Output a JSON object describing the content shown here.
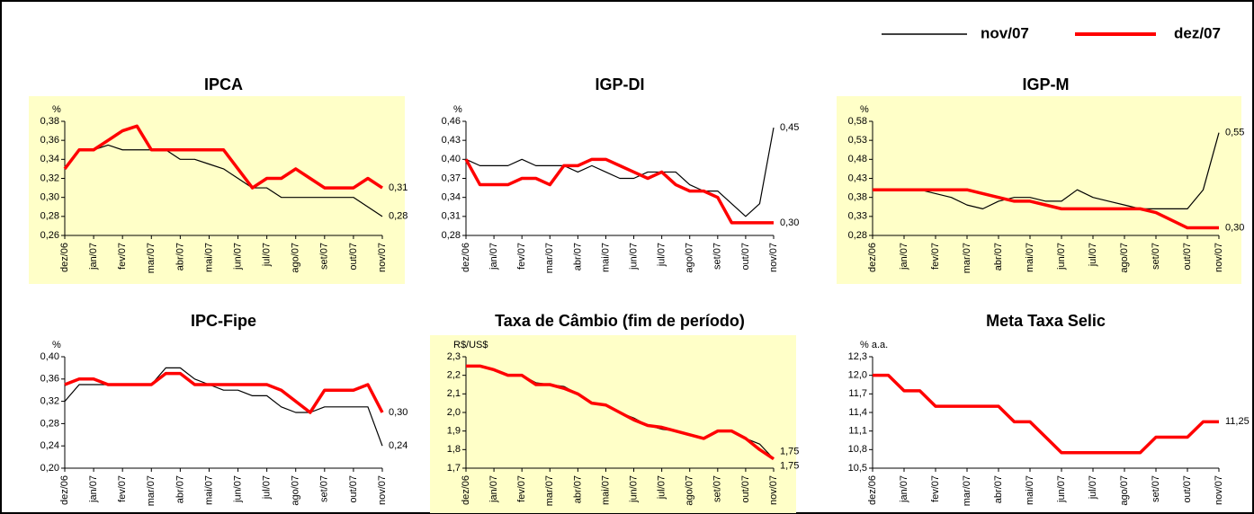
{
  "chart_data": [
    {
      "type": "line",
      "title": "IPCA",
      "y_unit": "%",
      "background": "#ffffc8",
      "categories": [
        "dez/06",
        null,
        "jan/07",
        null,
        "fev/07",
        null,
        "mar/07",
        null,
        "abr/07",
        null,
        "mai/07",
        null,
        "jun/07",
        null,
        "jul/07",
        null,
        "ago/07",
        null,
        "set/07",
        null,
        "out/07",
        null,
        "nov/07"
      ],
      "ylim": [
        0.26,
        0.38
      ],
      "yticks": [
        {
          "value": 0.26,
          "label": "0,26"
        },
        {
          "value": 0.28,
          "label": "0,28"
        },
        {
          "value": 0.3,
          "label": "0,30"
        },
        {
          "value": 0.32,
          "label": "0,32"
        },
        {
          "value": 0.34,
          "label": "0,34"
        },
        {
          "value": 0.36,
          "label": "0,36"
        },
        {
          "value": 0.38,
          "label": "0,38"
        }
      ],
      "series": [
        {
          "name": "nov/07",
          "color": "#000000",
          "values": [
            0.33,
            0.35,
            0.35,
            0.355,
            0.35,
            0.35,
            0.35,
            0.35,
            0.34,
            0.34,
            0.335,
            0.33,
            0.32,
            0.31,
            0.31,
            0.3,
            0.3,
            0.3,
            0.3,
            0.3,
            0.3,
            0.29,
            0.28
          ],
          "last_label": "0,28"
        },
        {
          "name": "dez/07",
          "color": "#ff0000",
          "values": [
            0.33,
            0.35,
            0.35,
            0.36,
            0.37,
            0.375,
            0.35,
            0.35,
            0.35,
            0.35,
            0.35,
            0.35,
            0.33,
            0.31,
            0.32,
            0.32,
            0.33,
            0.32,
            0.31,
            0.31,
            0.31,
            0.32,
            0.31
          ],
          "last_label": "0,31"
        }
      ]
    },
    {
      "type": "line",
      "title": "IGP-DI",
      "y_unit": "%",
      "categories": [
        "dez/06",
        null,
        "jan/07",
        null,
        "fev/07",
        null,
        "mar/07",
        null,
        "abr/07",
        null,
        "mai/07",
        null,
        "jun/07",
        null,
        "jul/07",
        null,
        "ago/07",
        null,
        "set/07",
        null,
        "out/07",
        null,
        "nov/07"
      ],
      "ylim": [
        0.28,
        0.46
      ],
      "yticks": [
        {
          "value": 0.28,
          "label": "0,28"
        },
        {
          "value": 0.31,
          "label": "0,31"
        },
        {
          "value": 0.34,
          "label": "0,34"
        },
        {
          "value": 0.37,
          "label": "0,37"
        },
        {
          "value": 0.4,
          "label": "0,40"
        },
        {
          "value": 0.43,
          "label": "0,43"
        },
        {
          "value": 0.46,
          "label": "0,46"
        }
      ],
      "series": [
        {
          "name": "nov/07",
          "color": "#000000",
          "values": [
            0.4,
            0.39,
            0.39,
            0.39,
            0.4,
            0.39,
            0.39,
            0.39,
            0.38,
            0.39,
            0.38,
            0.37,
            0.37,
            0.38,
            0.38,
            0.38,
            0.36,
            0.35,
            0.35,
            0.33,
            0.31,
            0.33,
            0.45
          ],
          "last_label": "0,45"
        },
        {
          "name": "dez/07",
          "color": "#ff0000",
          "values": [
            0.4,
            0.36,
            0.36,
            0.36,
            0.37,
            0.37,
            0.36,
            0.39,
            0.39,
            0.4,
            0.4,
            0.39,
            0.38,
            0.37,
            0.38,
            0.36,
            0.35,
            0.35,
            0.34,
            0.3,
            0.3,
            0.3,
            0.3
          ],
          "last_label": "0,30"
        }
      ]
    },
    {
      "type": "line",
      "title": "IGP-M",
      "y_unit": "%",
      "background": "#ffffc8",
      "categories": [
        "dez/06",
        null,
        "jan/07",
        null,
        "fev/07",
        null,
        "mar/07",
        null,
        "abr/07",
        null,
        "mai/07",
        null,
        "jun/07",
        null,
        "jul/07",
        null,
        "ago/07",
        null,
        "set/07",
        null,
        "out/07",
        null,
        "nov/07"
      ],
      "ylim": [
        0.28,
        0.58
      ],
      "yticks": [
        {
          "value": 0.28,
          "label": "0,28"
        },
        {
          "value": 0.33,
          "label": "0,33"
        },
        {
          "value": 0.38,
          "label": "0,38"
        },
        {
          "value": 0.43,
          "label": "0,43"
        },
        {
          "value": 0.48,
          "label": "0,48"
        },
        {
          "value": 0.53,
          "label": "0,53"
        },
        {
          "value": 0.58,
          "label": "0,58"
        }
      ],
      "series": [
        {
          "name": "nov/07",
          "color": "#000000",
          "values": [
            0.4,
            0.4,
            0.4,
            0.4,
            0.39,
            0.38,
            0.36,
            0.35,
            0.37,
            0.38,
            0.38,
            0.37,
            0.37,
            0.4,
            0.38,
            0.37,
            0.36,
            0.35,
            0.35,
            0.35,
            0.35,
            0.4,
            0.55
          ],
          "last_label": "0,55"
        },
        {
          "name": "dez/07",
          "color": "#ff0000",
          "values": [
            0.4,
            0.4,
            0.4,
            0.4,
            0.4,
            0.4,
            0.4,
            0.39,
            0.38,
            0.37,
            0.37,
            0.36,
            0.35,
            0.35,
            0.35,
            0.35,
            0.35,
            0.35,
            0.34,
            0.32,
            0.3,
            0.3,
            0.3
          ],
          "last_label": "0,30"
        }
      ]
    },
    {
      "type": "line",
      "title": "IPC-Fipe",
      "y_unit": "%",
      "categories": [
        "dez/06",
        null,
        "jan/07",
        null,
        "fev/07",
        null,
        "mar/07",
        null,
        "abr/07",
        null,
        "mai/07",
        null,
        "jun/07",
        null,
        "jul/07",
        null,
        "ago/07",
        null,
        "set/07",
        null,
        "out/07",
        null,
        "nov/07"
      ],
      "ylim": [
        0.2,
        0.4
      ],
      "yticks": [
        {
          "value": 0.2,
          "label": "0,20"
        },
        {
          "value": 0.24,
          "label": "0,24"
        },
        {
          "value": 0.28,
          "label": "0,28"
        },
        {
          "value": 0.32,
          "label": "0,32"
        },
        {
          "value": 0.36,
          "label": "0,36"
        },
        {
          "value": 0.4,
          "label": "0,40"
        }
      ],
      "series": [
        {
          "name": "nov/07",
          "color": "#000000",
          "values": [
            0.32,
            0.35,
            0.35,
            0.35,
            0.35,
            0.35,
            0.35,
            0.38,
            0.38,
            0.36,
            0.35,
            0.34,
            0.34,
            0.33,
            0.33,
            0.31,
            0.3,
            0.3,
            0.31,
            0.31,
            0.31,
            0.31,
            0.24
          ],
          "last_label": "0,24"
        },
        {
          "name": "dez/07",
          "color": "#ff0000",
          "values": [
            0.35,
            0.36,
            0.36,
            0.35,
            0.35,
            0.35,
            0.35,
            0.37,
            0.37,
            0.35,
            0.35,
            0.35,
            0.35,
            0.35,
            0.35,
            0.34,
            0.32,
            0.3,
            0.34,
            0.34,
            0.34,
            0.35,
            0.3
          ],
          "last_label": "0,30"
        }
      ]
    },
    {
      "type": "line",
      "title": "Taxa de Câmbio (fim de período)",
      "y_unit": "R$/US$",
      "background": "#ffffc8",
      "categories": [
        "dez/06",
        null,
        "jan/07",
        null,
        "fev/07",
        null,
        "mar/07",
        null,
        "abr/07",
        null,
        "mai/07",
        null,
        "jun/07",
        null,
        "jul/07",
        null,
        "ago/07",
        null,
        "set/07",
        null,
        "out/07",
        null,
        "nov/07"
      ],
      "ylim": [
        1.7,
        2.3
      ],
      "yticks": [
        {
          "value": 1.7,
          "label": "1,7"
        },
        {
          "value": 1.8,
          "label": "1,8"
        },
        {
          "value": 1.9,
          "label": "1,9"
        },
        {
          "value": 2.0,
          "label": "2,0"
        },
        {
          "value": 2.1,
          "label": "2,1"
        },
        {
          "value": 2.2,
          "label": "2,2"
        },
        {
          "value": 2.3,
          "label": "2,3"
        }
      ],
      "series": [
        {
          "name": "nov/07",
          "color": "#000000",
          "values": [
            2.25,
            2.25,
            2.23,
            2.2,
            2.2,
            2.16,
            2.15,
            2.14,
            2.1,
            2.05,
            2.04,
            2.0,
            1.97,
            1.93,
            1.91,
            1.9,
            1.88,
            1.86,
            1.9,
            1.9,
            1.86,
            1.83,
            1.75
          ],
          "last_label": "1,75"
        },
        {
          "name": "dez/07",
          "color": "#ff0000",
          "values": [
            2.25,
            2.25,
            2.23,
            2.2,
            2.2,
            2.15,
            2.15,
            2.13,
            2.1,
            2.05,
            2.04,
            2.0,
            1.96,
            1.93,
            1.92,
            1.9,
            1.88,
            1.86,
            1.9,
            1.9,
            1.86,
            1.8,
            1.75
          ],
          "last_label": "1,75"
        }
      ]
    },
    {
      "type": "line",
      "title": "Meta Taxa Selic",
      "y_unit": "% a.a.",
      "categories": [
        "dez/06",
        null,
        "jan/07",
        null,
        "fev/07",
        null,
        "mar/07",
        null,
        "abr/07",
        null,
        "mai/07",
        null,
        "jun/07",
        null,
        "jul/07",
        null,
        "ago/07",
        null,
        "set/07",
        null,
        "out/07",
        null,
        "nov/07"
      ],
      "ylim": [
        10.5,
        12.3
      ],
      "yticks": [
        {
          "value": 10.5,
          "label": "10,5"
        },
        {
          "value": 10.8,
          "label": "10,8"
        },
        {
          "value": 11.1,
          "label": "11,1"
        },
        {
          "value": 11.4,
          "label": "11,4"
        },
        {
          "value": 11.7,
          "label": "11,7"
        },
        {
          "value": 12.0,
          "label": "12,0"
        },
        {
          "value": 12.3,
          "label": "12,3"
        }
      ],
      "series": [
        {
          "name": "nov/07",
          "color": "#000000",
          "values": [
            12.0,
            12.0,
            11.75,
            11.75,
            11.5,
            11.5,
            11.5,
            11.5,
            11.5,
            11.25,
            11.25,
            11.0,
            10.75,
            10.75,
            10.75,
            10.75,
            10.75,
            10.75,
            11.0,
            11.0,
            11.0,
            11.25,
            11.25
          ]
        },
        {
          "name": "dez/07",
          "color": "#ff0000",
          "values": [
            12.0,
            12.0,
            11.75,
            11.75,
            11.5,
            11.5,
            11.5,
            11.5,
            11.5,
            11.25,
            11.25,
            11.0,
            10.75,
            10.75,
            10.75,
            10.75,
            10.75,
            10.75,
            11.0,
            11.0,
            11.0,
            11.25,
            11.25
          ],
          "last_label": "11,25"
        }
      ]
    }
  ]
}
